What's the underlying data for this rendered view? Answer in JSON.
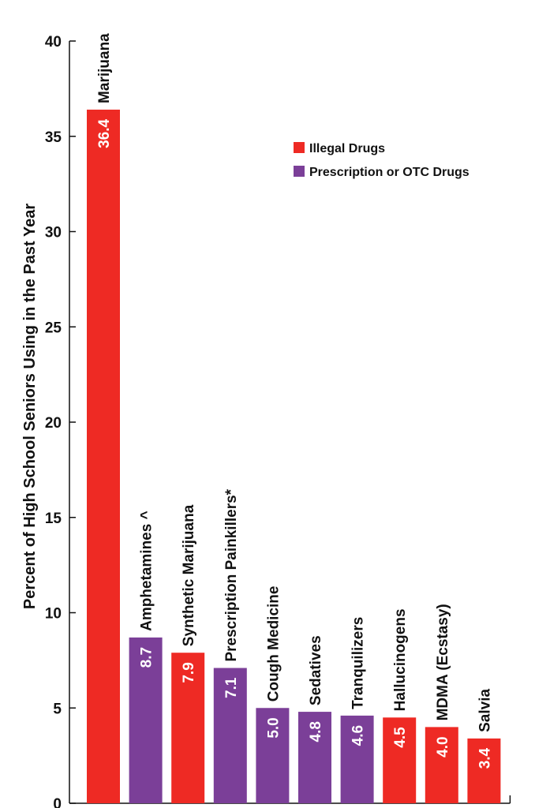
{
  "chart_data": {
    "type": "bar",
    "ylabel": "Percent of High School Seniors Using in the Past Year",
    "ylim": [
      0,
      40
    ],
    "yticks": [
      0,
      5,
      10,
      15,
      20,
      25,
      30,
      35,
      40
    ],
    "grid": false,
    "legend_position": "top-right",
    "legend": [
      {
        "group": "illegal",
        "label": "Illegal Drugs",
        "color": "#ee2a24"
      },
      {
        "group": "prescription",
        "label": "Prescription or OTC Drugs",
        "color": "#7b3f98"
      }
    ],
    "categories": [
      "Marijuana",
      "Amphetamines ^",
      "Synthetic Marijuana",
      "Prescription Painkillers*",
      "Cough Medicine",
      "Sedatives",
      "Tranquilizers",
      "Hallucinogens",
      "MDMA (Ecstasy)",
      "Salvia"
    ],
    "values": [
      36.4,
      8.7,
      7.9,
      7.1,
      5.0,
      4.8,
      4.6,
      4.5,
      4.0,
      3.4
    ],
    "value_labels": [
      "36.4",
      "8.7",
      "7.9",
      "7.1",
      "5.0",
      "4.8",
      "4.6",
      "4.5",
      "4.0",
      "3.4"
    ],
    "groups": [
      "illegal",
      "prescription",
      "illegal",
      "prescription",
      "prescription",
      "prescription",
      "prescription",
      "illegal",
      "illegal",
      "illegal"
    ]
  }
}
